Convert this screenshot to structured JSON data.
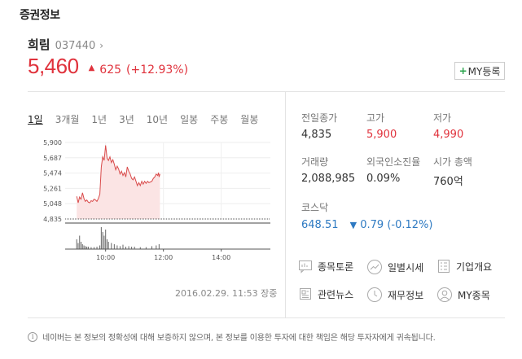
{
  "header": {
    "title": "증권정보"
  },
  "stock": {
    "name": "희림",
    "code": "037440",
    "arrow": "›",
    "price": "5,460",
    "direction_icon": "▲",
    "change": "625",
    "change_pct": "(+12.93%)",
    "color": "#e0323c"
  },
  "my_button": {
    "plus": "+",
    "label": "MY등록"
  },
  "tabs": [
    {
      "label": "1일",
      "active": true
    },
    {
      "label": "3개월"
    },
    {
      "label": "1년"
    },
    {
      "label": "3년"
    },
    {
      "label": "10년"
    },
    {
      "label": "일봉"
    },
    {
      "label": "주봉"
    },
    {
      "label": "월봉"
    }
  ],
  "chart_data": {
    "type": "area",
    "y_ticks": [
      "5,900",
      "5,687",
      "5,474",
      "5,261",
      "5,048",
      "4,835"
    ],
    "ylim": [
      4835,
      5900
    ],
    "x_ticks": [
      "10:00",
      "12:00",
      "14:00"
    ],
    "baseline": 4835,
    "line_color": "#d94a4a",
    "fill_color": "#fbe4e4",
    "price_points": [
      [
        9.0,
        5150
      ],
      [
        9.05,
        5060
      ],
      [
        9.1,
        5140
      ],
      [
        9.15,
        5110
      ],
      [
        9.2,
        5200
      ],
      [
        9.25,
        5120
      ],
      [
        9.3,
        5080
      ],
      [
        9.35,
        5100
      ],
      [
        9.4,
        5070
      ],
      [
        9.45,
        5060
      ],
      [
        9.5,
        5090
      ],
      [
        9.55,
        5080
      ],
      [
        9.6,
        5110
      ],
      [
        9.65,
        5100
      ],
      [
        9.7,
        5080
      ],
      [
        9.75,
        5120
      ],
      [
        9.8,
        5180
      ],
      [
        9.85,
        5560
      ],
      [
        9.9,
        5700
      ],
      [
        9.95,
        5650
      ],
      [
        10.0,
        5860
      ],
      [
        10.05,
        5680
      ],
      [
        10.1,
        5650
      ],
      [
        10.15,
        5700
      ],
      [
        10.2,
        5620
      ],
      [
        10.25,
        5660
      ],
      [
        10.3,
        5600
      ],
      [
        10.35,
        5520
      ],
      [
        10.4,
        5570
      ],
      [
        10.45,
        5530
      ],
      [
        10.5,
        5460
      ],
      [
        10.55,
        5500
      ],
      [
        10.6,
        5440
      ],
      [
        10.65,
        5480
      ],
      [
        10.7,
        5420
      ],
      [
        10.75,
        5560
      ],
      [
        10.8,
        5500
      ],
      [
        10.85,
        5460
      ],
      [
        10.9,
        5400
      ],
      [
        10.95,
        5380
      ],
      [
        11.0,
        5420
      ],
      [
        11.05,
        5360
      ],
      [
        11.1,
        5300
      ],
      [
        11.15,
        5340
      ],
      [
        11.2,
        5300
      ],
      [
        11.25,
        5360
      ],
      [
        11.3,
        5320
      ],
      [
        11.35,
        5360
      ],
      [
        11.4,
        5330
      ],
      [
        11.45,
        5360
      ],
      [
        11.5,
        5340
      ],
      [
        11.55,
        5350
      ],
      [
        11.6,
        5360
      ],
      [
        11.65,
        5400
      ],
      [
        11.7,
        5420
      ],
      [
        11.75,
        5460
      ],
      [
        11.8,
        5440
      ],
      [
        11.83,
        5480
      ],
      [
        11.85,
        5420
      ],
      [
        11.88,
        5460
      ]
    ],
    "volume_points": [
      [
        9.0,
        0.4
      ],
      [
        9.05,
        0.25
      ],
      [
        9.1,
        0.55
      ],
      [
        9.15,
        0.3
      ],
      [
        9.2,
        0.2
      ],
      [
        9.25,
        0.15
      ],
      [
        9.3,
        0.12
      ],
      [
        9.35,
        0.1
      ],
      [
        9.4,
        0.1
      ],
      [
        9.5,
        0.08
      ],
      [
        9.6,
        0.08
      ],
      [
        9.7,
        0.1
      ],
      [
        9.8,
        0.15
      ],
      [
        9.85,
        0.9
      ],
      [
        9.9,
        0.7
      ],
      [
        9.95,
        0.55
      ],
      [
        10.0,
        0.8
      ],
      [
        10.05,
        0.4
      ],
      [
        10.1,
        0.3
      ],
      [
        10.2,
        0.25
      ],
      [
        10.3,
        0.2
      ],
      [
        10.4,
        0.15
      ],
      [
        10.5,
        0.12
      ],
      [
        10.6,
        0.18
      ],
      [
        10.7,
        0.1
      ],
      [
        10.8,
        0.12
      ],
      [
        10.9,
        0.1
      ],
      [
        11.0,
        0.1
      ],
      [
        11.2,
        0.08
      ],
      [
        11.4,
        0.08
      ],
      [
        11.6,
        0.12
      ],
      [
        11.75,
        0.15
      ],
      [
        11.85,
        0.2
      ]
    ],
    "x_range": [
      8.6,
      15.7
    ]
  },
  "timestamp": "2016.02.29. 11:53 장중",
  "info": {
    "prev_close": {
      "label": "전일종가",
      "value": "4,835"
    },
    "high": {
      "label": "고가",
      "value": "5,900"
    },
    "low": {
      "label": "저가",
      "value": "4,990"
    },
    "volume": {
      "label": "거래량",
      "value": "2,088,985"
    },
    "foreign_ratio": {
      "label": "외국인소진율",
      "value": "0.09%"
    },
    "market_cap": {
      "label": "시가 총액",
      "value": "760억"
    },
    "kosdaq": {
      "label": "코스닥",
      "value": "648.51",
      "direction_icon": "▼",
      "change": "0.79",
      "change_pct": "(-0.12%)",
      "color": "#2e7ac2"
    }
  },
  "links": [
    {
      "label": "종목토론",
      "icon": "chat-icon"
    },
    {
      "label": "일별시세",
      "icon": "trend-icon"
    },
    {
      "label": "기업개요",
      "icon": "document-icon"
    },
    {
      "label": "관련뉴스",
      "icon": "news-icon"
    },
    {
      "label": "재무정보",
      "icon": "clock-icon"
    },
    {
      "label": "MY종목",
      "icon": "person-icon"
    }
  ],
  "disclaimer": {
    "icon": "i",
    "text": "네이버는 본 정보의 정확성에 대해 보증하지 않으며, 본 정보를 이용한 투자에 대한 책임은 해당 투자자에게 귀속됩니다."
  }
}
